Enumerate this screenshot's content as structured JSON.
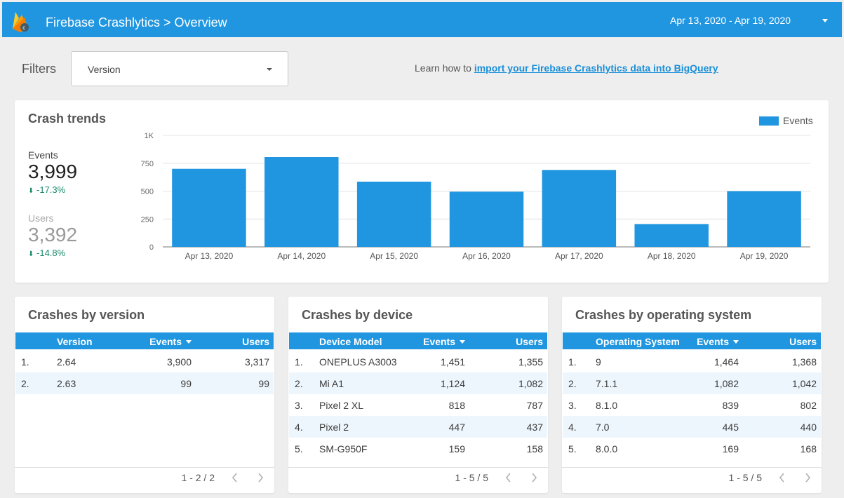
{
  "header": {
    "title": "Firebase Crashlytics > Overview",
    "date_range": "Apr 13, 2020 - Apr 19, 2020",
    "logo_icon": "firebase-logo-icon",
    "accent_color": "#2196e0"
  },
  "filters": {
    "label": "Filters",
    "version_select": "Version",
    "learn_prefix": "Learn how to",
    "learn_link": "import your Firebase Crashlytics data into BigQuery"
  },
  "crash_trends": {
    "title": "Crash trends",
    "events_label": "Events",
    "events_value": "3,999",
    "events_delta": "-17.3%",
    "users_label": "Users",
    "users_value": "3,392",
    "users_delta": "-14.8%"
  },
  "chart_data": {
    "type": "bar",
    "categories": [
      "Apr 13, 2020",
      "Apr 14, 2020",
      "Apr 15, 2020",
      "Apr 16, 2020",
      "Apr 17, 2020",
      "Apr 18, 2020",
      "Apr 19, 2020"
    ],
    "series": [
      {
        "name": "Events",
        "values": [
          700,
          805,
          585,
          495,
          690,
          205,
          500
        ],
        "color": "#2196e0"
      }
    ],
    "ylim": [
      0,
      1000
    ],
    "yticks": [
      0,
      250,
      500,
      750,
      1000
    ],
    "ytick_labels": [
      "0",
      "250",
      "500",
      "750",
      "1K"
    ],
    "grid": true,
    "legend": "top-right"
  },
  "tables": [
    {
      "title": "Crashes by version",
      "columns": [
        "Version",
        "Events",
        "Users"
      ],
      "rows": [
        [
          "1.",
          "2.64",
          "3,900",
          "3,317"
        ],
        [
          "2.",
          "2.63",
          "99",
          "99"
        ]
      ],
      "pager": "1 - 2 / 2"
    },
    {
      "title": "Crashes by device",
      "columns": [
        "Device Model",
        "Events",
        "Users"
      ],
      "rows": [
        [
          "1.",
          "ONEPLUS A3003",
          "1,451",
          "1,355"
        ],
        [
          "2.",
          "Mi A1",
          "1,124",
          "1,082"
        ],
        [
          "3.",
          "Pixel 2 XL",
          "818",
          "787"
        ],
        [
          "4.",
          "Pixel 2",
          "447",
          "437"
        ],
        [
          "5.",
          "SM-G950F",
          "159",
          "158"
        ]
      ],
      "pager": "1 - 5 / 5"
    },
    {
      "title": "Crashes by operating system",
      "columns": [
        "Operating System",
        "Events",
        "Users"
      ],
      "rows": [
        [
          "1.",
          "9",
          "1,464",
          "1,368"
        ],
        [
          "2.",
          "7.1.1",
          "1,082",
          "1,042"
        ],
        [
          "3.",
          "8.1.0",
          "839",
          "802"
        ],
        [
          "4.",
          "7.0",
          "445",
          "440"
        ],
        [
          "5.",
          "8.0.0",
          "169",
          "168"
        ]
      ],
      "pager": "1 - 5 / 5"
    }
  ]
}
